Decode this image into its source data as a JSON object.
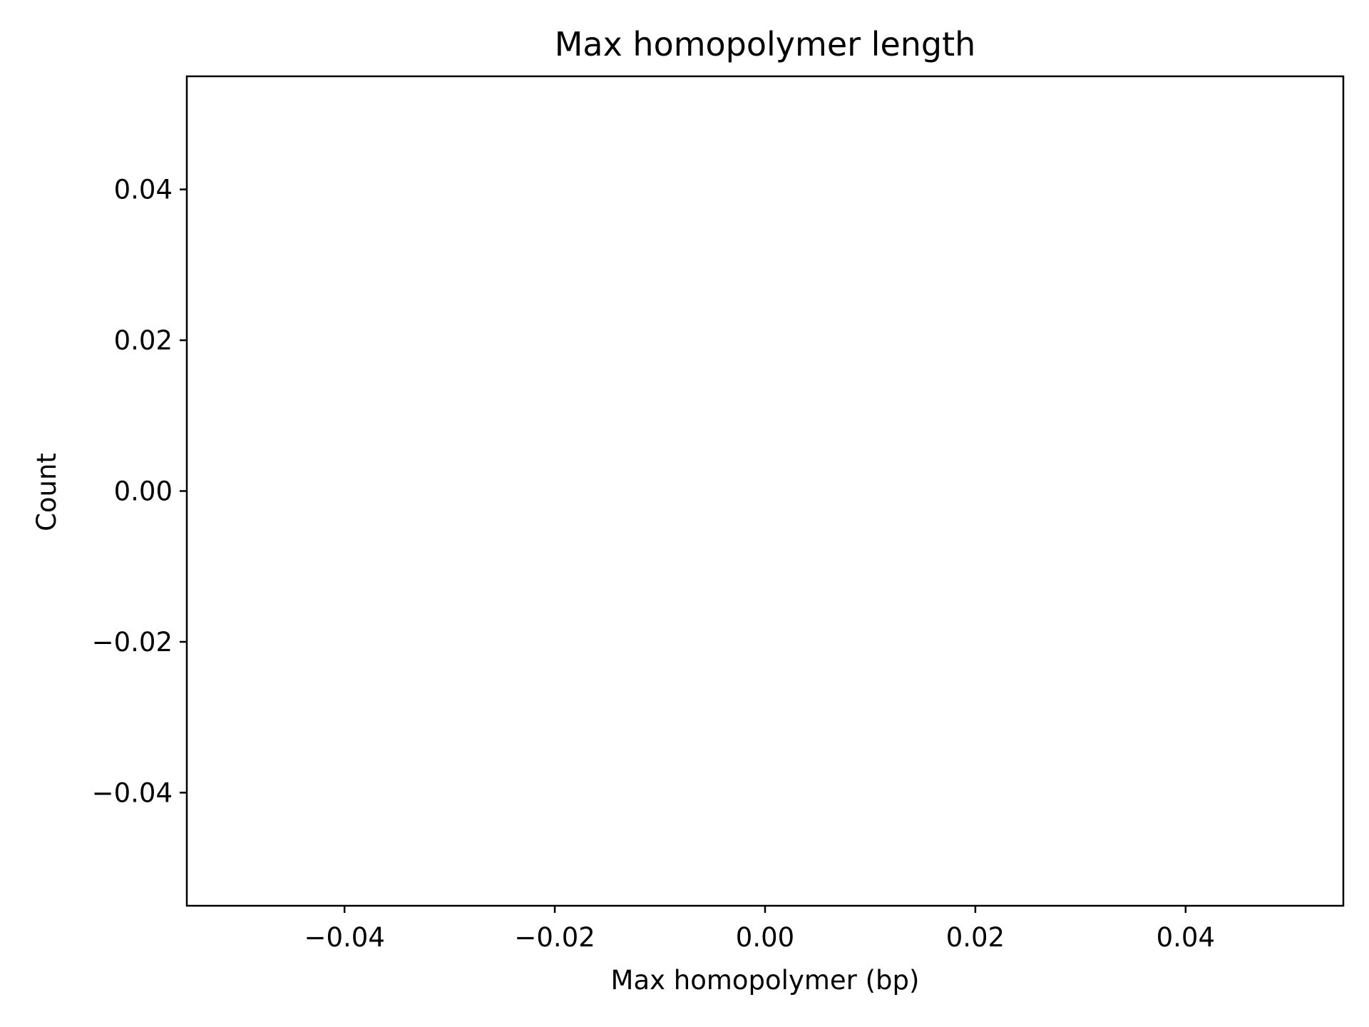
{
  "chart_data": {
    "type": "bar",
    "title": "Max homopolymer length",
    "xlabel": "Max homopolymer (bp)",
    "ylabel": "Count",
    "xlim": [
      -0.055,
      0.055
    ],
    "ylim": [
      -0.055,
      0.055
    ],
    "x_ticks": [
      -0.04,
      -0.02,
      0.0,
      0.02,
      0.04
    ],
    "x_tick_labels": [
      "−0.04",
      "−0.02",
      "0.00",
      "0.02",
      "0.04"
    ],
    "y_ticks": [
      -0.04,
      -0.02,
      0.0,
      0.02,
      0.04
    ],
    "y_tick_labels": [
      "−0.04",
      "−0.02",
      "0.00",
      "0.02",
      "0.04"
    ],
    "series": [],
    "grid": false,
    "legend": "none"
  }
}
